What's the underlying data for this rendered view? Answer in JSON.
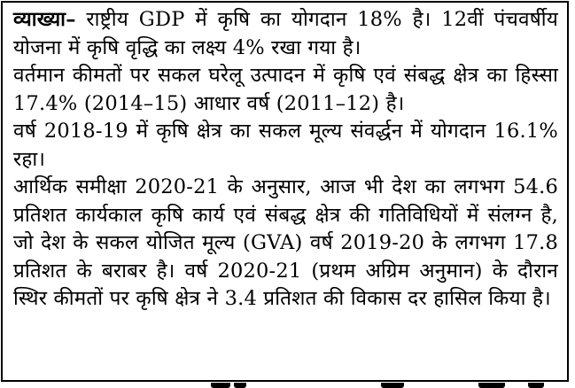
{
  "passage": {
    "lead_label": "व्याख्या–",
    "p1": "राष्ट्रीय GDP में कृषि का योगदान 18% है। 12वीं पंचवर्षीय योजना में कृषि वृद्धि का लक्ष्य 4% रखा गया है।",
    "p2": "वर्तमान कीमतों पर सकल घरेलू उत्पादन में कृषि एवं संबद्ध क्षेत्र का हिस्सा 17.4% (2014–15) आधार वर्ष (2011–12) है।",
    "p3": "वर्ष 2018-19 में कृषि क्षेत्र का सकल मूल्य संवर्द्धन में योगदान 16.1% रहा।",
    "p4": "आर्थिक समीक्षा 2020-21 के अनुसार, आज भी देश का लगभग 54.6 प्रतिशत कार्यकाल कृषि कार्य एवं संबद्ध क्षेत्र की गतिविधियों में संलग्न है, जो देश के सकल योजित मूल्य (GVA) वर्ष 2019-20 के लगभग 17.8 प्रतिशत के बराबर है। वर्ष 2020-21 (प्रथम अग्रिम अनुमान) के दौरान स्थिर कीमतों पर कृषि क्षेत्र ने 3.4 प्रतिशत की विकास दर हासिल किया है।"
  }
}
